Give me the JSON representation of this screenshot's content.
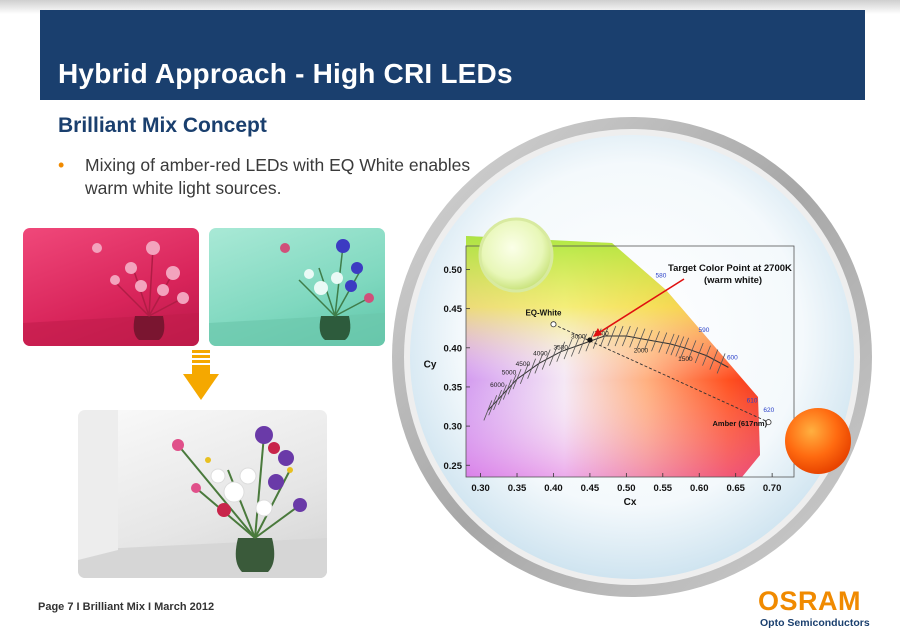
{
  "slide": {
    "title": "Hybrid Approach -  High CRI LEDs",
    "subtitle": "Brilliant Mix Concept",
    "bullet": "Mixing of amber-red LEDs with EQ White enables warm white light sources.",
    "bullet_marker": "•"
  },
  "footer": {
    "page_info": "Page 7 I Brilliant Mix I March 2012"
  },
  "brand": {
    "logo": "OSRAM",
    "tagline": "Opto Semiconductors",
    "color": "#f08a00",
    "navy": "#1a3f6e"
  },
  "arrow": {
    "icon": "down-arrow-icon",
    "color": "#f5a800"
  },
  "chart_data": {
    "type": "scatter",
    "title": "",
    "xlabel": "Cx",
    "ylabel": "Cy",
    "xlim": [
      0.28,
      0.73
    ],
    "ylim": [
      0.235,
      0.53
    ],
    "x_ticks": [
      "0.30",
      "0.35",
      "0.40",
      "0.45",
      "0.50",
      "0.55",
      "0.60",
      "0.65",
      "0.70"
    ],
    "y_ticks": [
      "0.50",
      "0.45",
      "0.40",
      "0.35",
      "0.30",
      "0.25"
    ],
    "planckian_locus": [
      [
        0.31,
        0.32
      ],
      [
        0.33,
        0.34
      ],
      [
        0.35,
        0.36
      ],
      [
        0.38,
        0.38
      ],
      [
        0.41,
        0.395
      ],
      [
        0.44,
        0.405
      ],
      [
        0.47,
        0.415
      ],
      [
        0.5,
        0.415
      ],
      [
        0.53,
        0.41
      ],
      [
        0.56,
        0.405
      ],
      [
        0.58,
        0.4
      ],
      [
        0.61,
        0.39
      ],
      [
        0.64,
        0.375
      ]
    ],
    "cct_labels": [
      {
        "label": "6000",
        "x": 0.323,
        "y": 0.35
      },
      {
        "label": "5000",
        "x": 0.339,
        "y": 0.366
      },
      {
        "label": "4500",
        "x": 0.358,
        "y": 0.377
      },
      {
        "label": "4000",
        "x": 0.382,
        "y": 0.39
      },
      {
        "label": "3500",
        "x": 0.41,
        "y": 0.398
      },
      {
        "label": "3000",
        "x": 0.434,
        "y": 0.412
      },
      {
        "label": "2500",
        "x": 0.466,
        "y": 0.416
      },
      {
        "label": "2000",
        "x": 0.52,
        "y": 0.394
      },
      {
        "label": "1500",
        "x": 0.581,
        "y": 0.383
      }
    ],
    "wavelength_labels": [
      {
        "label": "580",
        "x": 0.54,
        "y": 0.49
      },
      {
        "label": "590",
        "x": 0.599,
        "y": 0.42
      },
      {
        "label": "600",
        "x": 0.638,
        "y": 0.385
      },
      {
        "label": "610",
        "x": 0.665,
        "y": 0.33
      },
      {
        "label": "620",
        "x": 0.688,
        "y": 0.318
      }
    ],
    "points": [
      {
        "name": "EQ-White",
        "x": 0.4,
        "y": 0.43
      },
      {
        "name": "Target Color Point at 2700K (warm white)",
        "x": 0.45,
        "y": 0.41
      },
      {
        "name": "Amber (617nm)",
        "x": 0.695,
        "y": 0.305
      }
    ],
    "labels": {
      "eq_white": "EQ-White",
      "target_line1": "Target Color Point at 2700K",
      "target_line2": "(warm white)",
      "amber": "Amber (617nm)"
    },
    "grid": false
  }
}
